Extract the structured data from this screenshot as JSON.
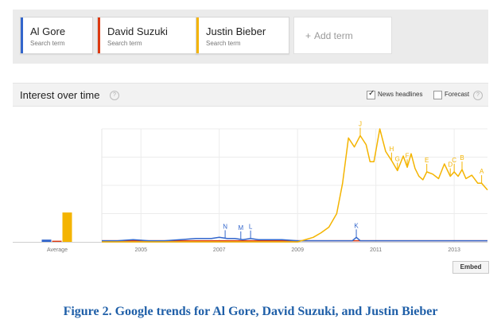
{
  "search_terms": [
    {
      "name": "Al Gore",
      "sub": "Search term",
      "color": "#3366cc"
    },
    {
      "name": "David Suzuki",
      "sub": "Search term",
      "color": "#dc3912"
    },
    {
      "name": "Justin Bieber",
      "sub": "Search term",
      "color": "#f4b400"
    }
  ],
  "add_term": {
    "icon": "plus-icon",
    "label": "Add term",
    "plus": "+"
  },
  "interest": {
    "title": "Interest over time",
    "help_icon": "help-icon",
    "help_glyph": "?",
    "news_headlines": {
      "label": "News headlines",
      "checked": true,
      "check_glyph": "✓"
    },
    "forecast": {
      "label": "Forecast",
      "checked": false
    },
    "embed_label": "Embed"
  },
  "caption": "Figure 2. Google trends for Al Gore, David Suzuki, and Justin Bieber",
  "chart_data": {
    "type": "line",
    "x_ticks": [
      "2005",
      "2007",
      "2009",
      "2011",
      "2013"
    ],
    "x_tick_values": [
      2005,
      2007,
      2009,
      2011,
      2013
    ],
    "xlim": [
      2004.0,
      2013.85
    ],
    "ylim": [
      0,
      100
    ],
    "gridlines": true,
    "average": {
      "label": "Average",
      "values": {
        "Al Gore": 2,
        "David Suzuki": 1,
        "Justin Bieber": 26
      }
    },
    "series": [
      {
        "name": "Al Gore",
        "color": "#3366cc",
        "x": [
          2004.0,
          2004.4,
          2004.8,
          2005.2,
          2005.6,
          2006.0,
          2006.4,
          2006.8,
          2007.0,
          2007.2,
          2007.4,
          2007.6,
          2007.8,
          2008.0,
          2008.2,
          2008.6,
          2009.0,
          2009.5,
          2010.0,
          2010.4,
          2010.5,
          2010.6,
          2010.9,
          2011.2,
          2011.6,
          2012.0,
          2012.5,
          2013.0,
          2013.5,
          2013.85
        ],
        "y": [
          1,
          1,
          2,
          1,
          1,
          2,
          3,
          3,
          4,
          3,
          3,
          2,
          3,
          2,
          2,
          2,
          1,
          1,
          1,
          1,
          4,
          1,
          1,
          1,
          1,
          1,
          1,
          1,
          1,
          1
        ]
      },
      {
        "name": "David Suzuki",
        "color": "#dc3912",
        "x": [
          2004.0,
          2006.0,
          2008.0,
          2010.0,
          2011.0,
          2012.0,
          2013.0,
          2013.85
        ],
        "y": [
          1,
          1,
          1,
          1,
          1,
          1,
          1,
          1
        ]
      },
      {
        "name": "Justin Bieber",
        "color": "#f4b400",
        "x": [
          2004.0,
          2009.0,
          2009.4,
          2009.6,
          2009.8,
          2010.0,
          2010.15,
          2010.3,
          2010.45,
          2010.6,
          2010.75,
          2010.85,
          2010.95,
          2011.1,
          2011.25,
          2011.4,
          2011.55,
          2011.7,
          2011.8,
          2011.9,
          2012.0,
          2012.1,
          2012.2,
          2012.3,
          2012.45,
          2012.6,
          2012.75,
          2012.9,
          2013.0,
          2013.1,
          2013.2,
          2013.3,
          2013.45,
          2013.6,
          2013.7,
          2013.85
        ],
        "y": [
          0,
          0,
          4,
          8,
          13,
          25,
          52,
          92,
          84,
          94,
          86,
          71,
          71,
          100,
          80,
          72,
          63,
          76,
          66,
          78,
          65,
          58,
          55,
          62,
          60,
          56,
          69,
          58,
          62,
          58,
          64,
          56,
          59,
          52,
          52,
          46
        ]
      }
    ],
    "annotations": [
      {
        "letter": "N",
        "x": 2007.15,
        "series": "Al Gore"
      },
      {
        "letter": "M",
        "x": 2007.55,
        "series": "Al Gore"
      },
      {
        "letter": "L",
        "x": 2007.8,
        "series": "Al Gore"
      },
      {
        "letter": "K",
        "x": 2010.5,
        "series": "Al Gore"
      },
      {
        "letter": "J",
        "x": 2010.6,
        "series": "Justin Bieber"
      },
      {
        "letter": "H",
        "x": 2011.4,
        "series": "Justin Bieber"
      },
      {
        "letter": "G",
        "x": 2011.55,
        "series": "Justin Bieber"
      },
      {
        "letter": "F",
        "x": 2011.8,
        "series": "Justin Bieber"
      },
      {
        "letter": "E",
        "x": 2012.3,
        "series": "Justin Bieber"
      },
      {
        "letter": "D",
        "x": 2012.9,
        "series": "Justin Bieber"
      },
      {
        "letter": "C",
        "x": 2013.0,
        "series": "Justin Bieber"
      },
      {
        "letter": "B",
        "x": 2013.2,
        "series": "Justin Bieber"
      },
      {
        "letter": "A",
        "x": 2013.7,
        "series": "Justin Bieber"
      }
    ]
  }
}
